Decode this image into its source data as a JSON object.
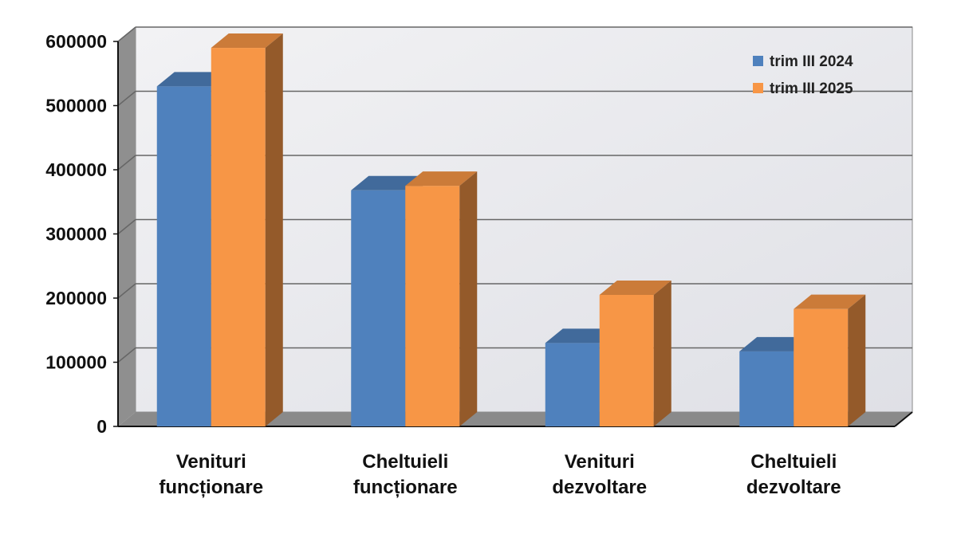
{
  "chart_data": {
    "type": "bar",
    "style": "3d-clustered-column",
    "categories": [
      [
        "Venituri",
        "funcționare"
      ],
      [
        "Cheltuieli",
        "funcționare"
      ],
      [
        "Venituri",
        "dezvoltare"
      ],
      [
        "Cheltuieli",
        "dezvoltare"
      ]
    ],
    "series": [
      {
        "name": "trim III 2024",
        "color": "#4f81bd",
        "values": [
          530000,
          368000,
          130000,
          117000
        ]
      },
      {
        "name": "trim III 2025",
        "color": "#f79646",
        "values": [
          590000,
          375000,
          205000,
          183000
        ]
      }
    ],
    "yticks": [
      "0",
      "100000",
      "200000",
      "300000",
      "400000",
      "500000",
      "600000"
    ],
    "ylim": [
      0,
      600000
    ],
    "grid": true,
    "legend_position": "top-right",
    "title": "",
    "xlabel": "",
    "ylabel": ""
  }
}
